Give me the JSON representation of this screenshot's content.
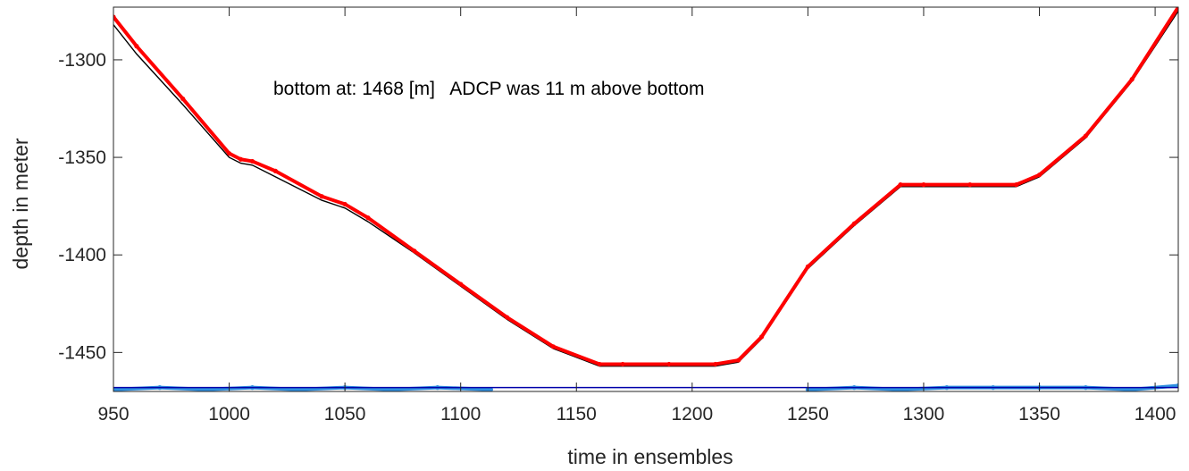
{
  "chart_data": {
    "type": "line",
    "xlabel": "time in ensembles",
    "ylabel": "depth in meter",
    "annotation": "bottom at: 1468 [m]   ADCP was 11 m above bottom",
    "xlim": [
      950,
      1410
    ],
    "ylim": [
      -1470,
      -1273
    ],
    "xticks": [
      950,
      1000,
      1050,
      1100,
      1150,
      1200,
      1250,
      1300,
      1350,
      1400
    ],
    "yticks": [
      -1300,
      -1350,
      -1400,
      -1450
    ],
    "grid": false,
    "series": [
      {
        "color": "#000000",
        "style": "line",
        "x": [
          950,
          960,
          980,
          1000,
          1005,
          1010,
          1020,
          1040,
          1050,
          1060,
          1080,
          1100,
          1120,
          1140,
          1160,
          1170,
          1190,
          1210,
          1220,
          1230,
          1250,
          1270,
          1290,
          1300,
          1320,
          1340,
          1350,
          1370,
          1390,
          1410
        ],
        "y": [
          -1282,
          -1297,
          -1323,
          -1350,
          -1353,
          -1354,
          -1360,
          -1372,
          -1376,
          -1383,
          -1399,
          -1416,
          -1433,
          -1448,
          -1457,
          -1457,
          -1457,
          -1457,
          -1455,
          -1443,
          -1407,
          -1385,
          -1365,
          -1365,
          -1365,
          -1365,
          -1360,
          -1340,
          -1311,
          -1275
        ]
      },
      {
        "color": "#ff0000",
        "style": "dots",
        "x": [
          950,
          960,
          980,
          1000,
          1005,
          1010,
          1020,
          1040,
          1050,
          1060,
          1080,
          1100,
          1120,
          1140,
          1160,
          1170,
          1190,
          1210,
          1220,
          1230,
          1250,
          1270,
          1290,
          1300,
          1320,
          1340,
          1350,
          1370,
          1390,
          1410
        ],
        "y": [
          -1278,
          -1293,
          -1320,
          -1348,
          -1351,
          -1352,
          -1357,
          -1370,
          -1374,
          -1381,
          -1398,
          -1415,
          -1432,
          -1447,
          -1456,
          -1456,
          -1456,
          -1456,
          -1454,
          -1442,
          -1406,
          -1384,
          -1364,
          -1364,
          -1364,
          -1364,
          -1359,
          -1339,
          -1310,
          -1273
        ]
      },
      {
        "color": "#2e8fe0",
        "style": "dots",
        "x": [
          950,
          970,
          990,
          1010,
          1030,
          1050,
          1070,
          1090,
          1113
        ],
        "y": [
          -1469,
          -1468,
          -1469,
          -1468,
          -1469,
          -1468,
          -1469,
          -1468,
          -1469
        ]
      },
      {
        "color": "#2e8fe0",
        "style": "dots",
        "x": [
          1250,
          1270,
          1290,
          1310,
          1330,
          1350,
          1370,
          1390,
          1410
        ],
        "y": [
          -1469,
          -1468,
          -1469,
          -1468,
          -1468,
          -1468,
          -1468,
          -1469,
          -1467
        ]
      },
      {
        "color": "#0000aa",
        "style": "line",
        "x": [
          950,
          1410
        ],
        "y": [
          -1468,
          -1468
        ]
      }
    ]
  }
}
